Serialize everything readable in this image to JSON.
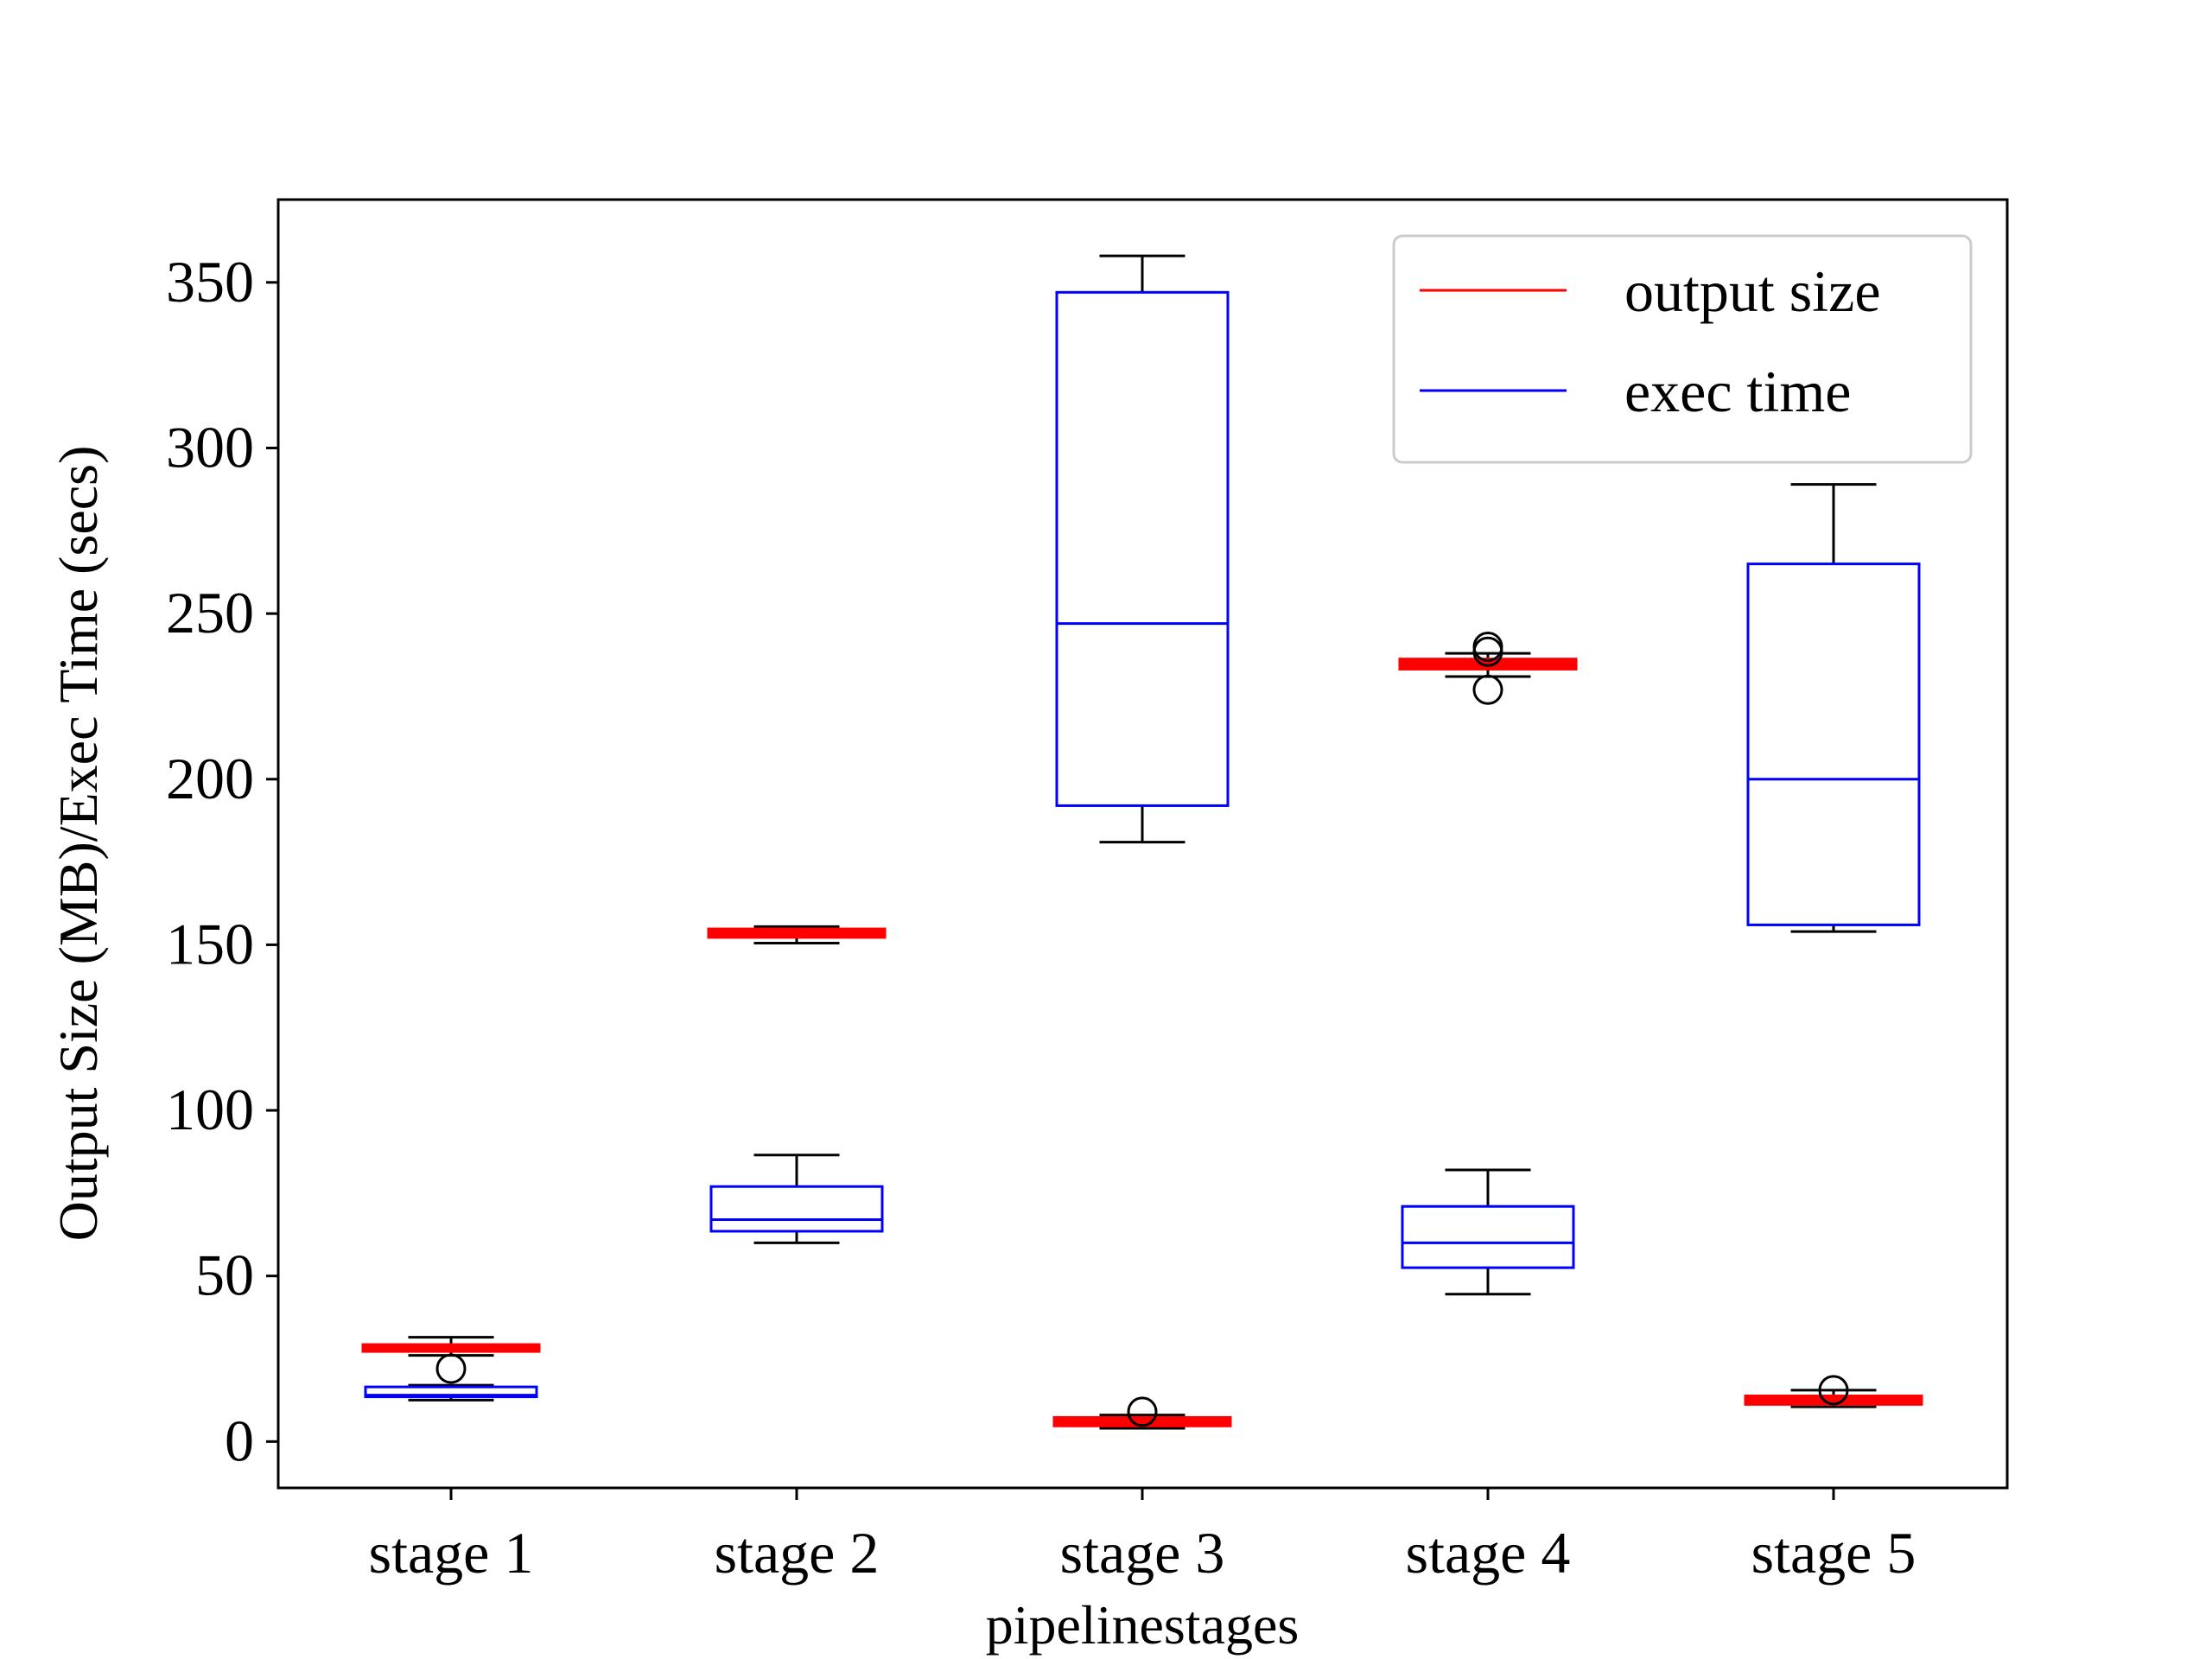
{
  "chart_data": {
    "type": "box",
    "title": "",
    "xlabel": "pipelinestages",
    "ylabel": "Output Size (MB)/Exec Time (secs)",
    "categories": [
      "stage 1",
      "stage 2",
      "stage 3",
      "stage 4",
      "stage 5"
    ],
    "ylim": [
      -14,
      375
    ],
    "yticks": [
      0,
      50,
      100,
      150,
      200,
      250,
      300,
      350
    ],
    "legend": {
      "position": "top-right"
    },
    "series": [
      {
        "name": "output size",
        "color": "#ff0000",
        "boxes": [
          {
            "whislo": 26,
            "q1": 28,
            "med": 28,
            "q3": 28.5,
            "whishi": 31.5,
            "fliers": [
              22
            ]
          },
          {
            "whislo": 150.5,
            "q1": 153,
            "med": 153.5,
            "q3": 154,
            "whishi": 155.5,
            "fliers": []
          },
          {
            "whislo": 4,
            "q1": 5.5,
            "med": 6,
            "q3": 6.5,
            "whislo2": null,
            "whishi": 8,
            "fliers": [
              9
            ]
          },
          {
            "whislo": 231,
            "q1": 234,
            "med": 235,
            "q3": 235.5,
            "whishi": 238,
            "fliers": [
              227,
              238.5,
              240
            ]
          },
          {
            "whislo": 10.5,
            "q1": 12,
            "med": 12.5,
            "q3": 13,
            "whishi": 15.5,
            "fliers": [
              15.5
            ]
          }
        ]
      },
      {
        "name": "exec time",
        "color": "#0000ff",
        "boxes": [
          {
            "whislo": 12.5,
            "q1": 13.5,
            "med": 14,
            "q3": 16.5,
            "whishi": 17,
            "fliers": []
          },
          {
            "whislo": 60,
            "q1": 63.5,
            "med": 67,
            "q3": 77,
            "whishi": 86.5,
            "fliers": []
          },
          {
            "whislo": 181,
            "q1": 192,
            "med": 247,
            "q3": 347,
            "whishi": 358,
            "fliers": []
          },
          {
            "whislo": 44.5,
            "q1": 52.5,
            "med": 60,
            "q3": 71,
            "whishi": 82,
            "fliers": []
          },
          {
            "whislo": 154,
            "q1": 156,
            "med": 200,
            "q3": 265,
            "whishi": 289,
            "fliers": []
          }
        ]
      }
    ]
  }
}
